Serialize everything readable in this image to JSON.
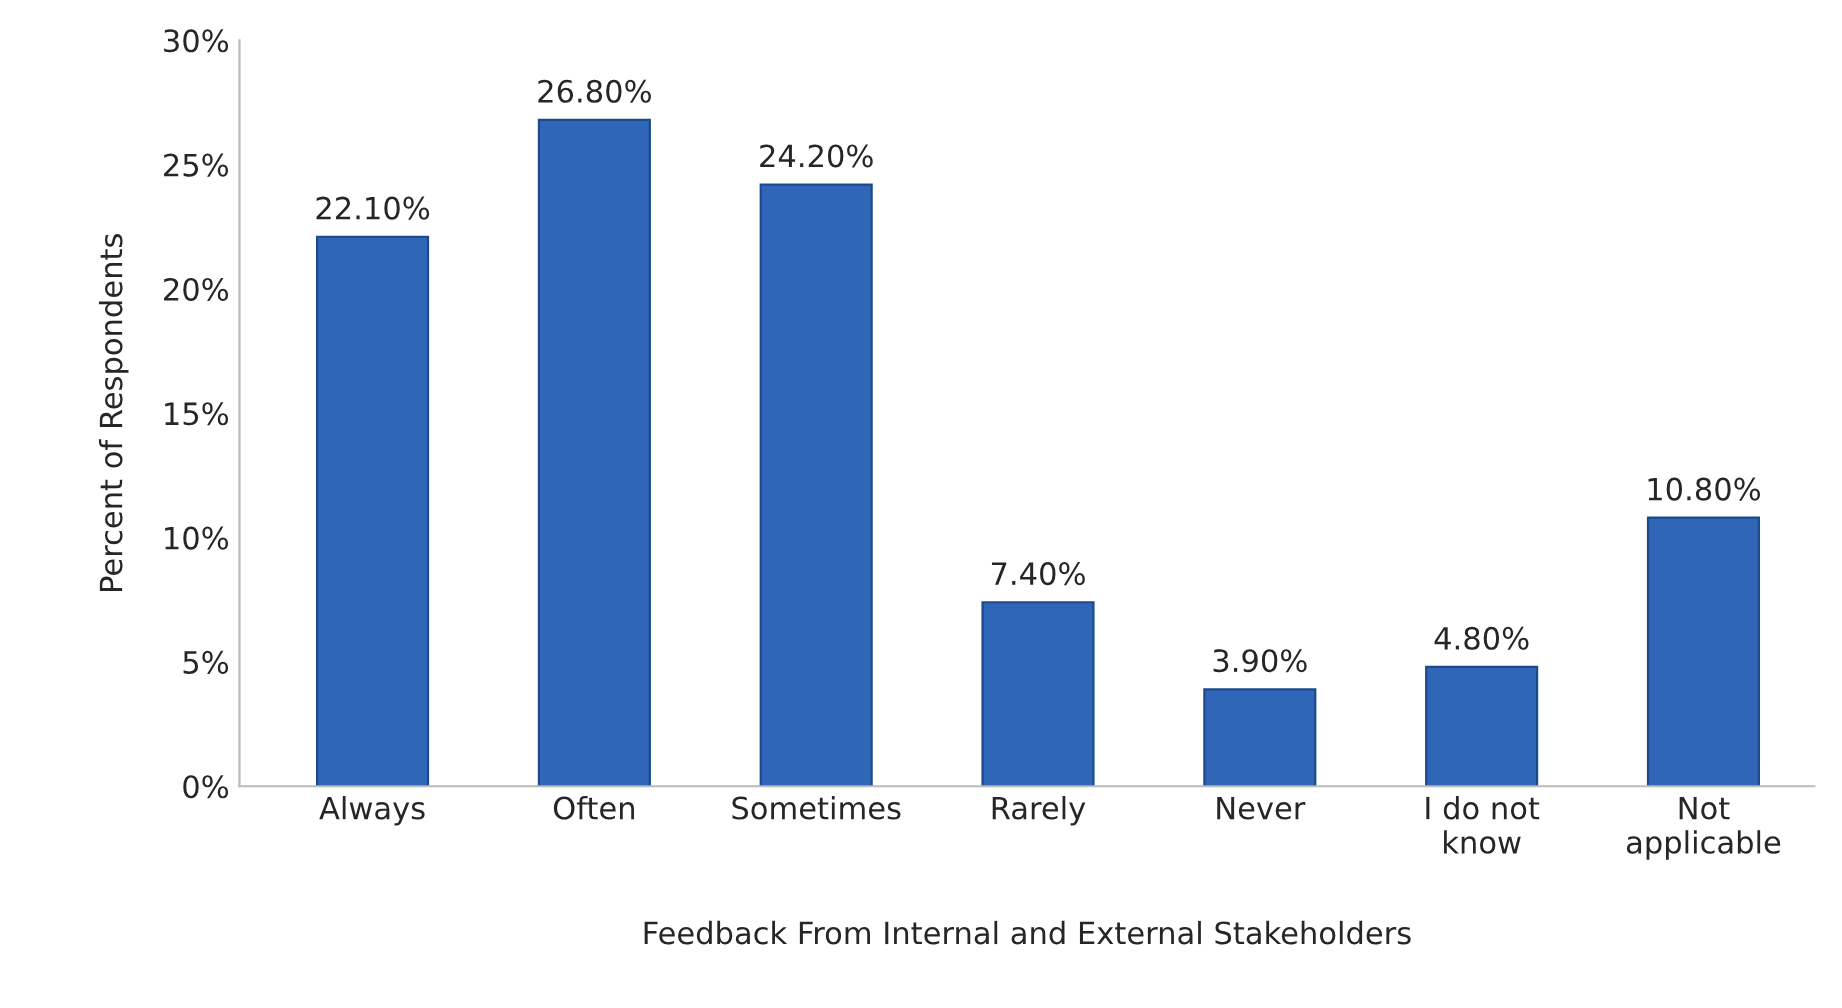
{
  "chart_data": {
    "type": "bar",
    "xlabel": "Feedback From Internal and External Stakeholders",
    "ylabel": "Percent of Respondents",
    "categories": [
      "Always",
      "Often",
      "Sometimes",
      "Rarely",
      "Never",
      "I do not\nknow",
      "Not\napplicable"
    ],
    "values": [
      22.1,
      26.8,
      24.2,
      7.4,
      3.9,
      4.8,
      10.8
    ],
    "value_labels": [
      "22.10%",
      "26.80%",
      "24.20%",
      "7.40%",
      "3.90%",
      "4.80%",
      "10.80%"
    ],
    "color": "#2f66b8",
    "ylim": [
      0,
      30
    ],
    "yticks": [
      {
        "value": 0,
        "label": "0%"
      },
      {
        "value": 5,
        "label": "5%"
      },
      {
        "value": 10,
        "label": "10%"
      },
      {
        "value": 15,
        "label": "15%"
      },
      {
        "value": 20,
        "label": "20%"
      },
      {
        "value": 25,
        "label": "25%"
      },
      {
        "value": 30,
        "label": "30%"
      }
    ],
    "grid": false,
    "legend": false
  }
}
